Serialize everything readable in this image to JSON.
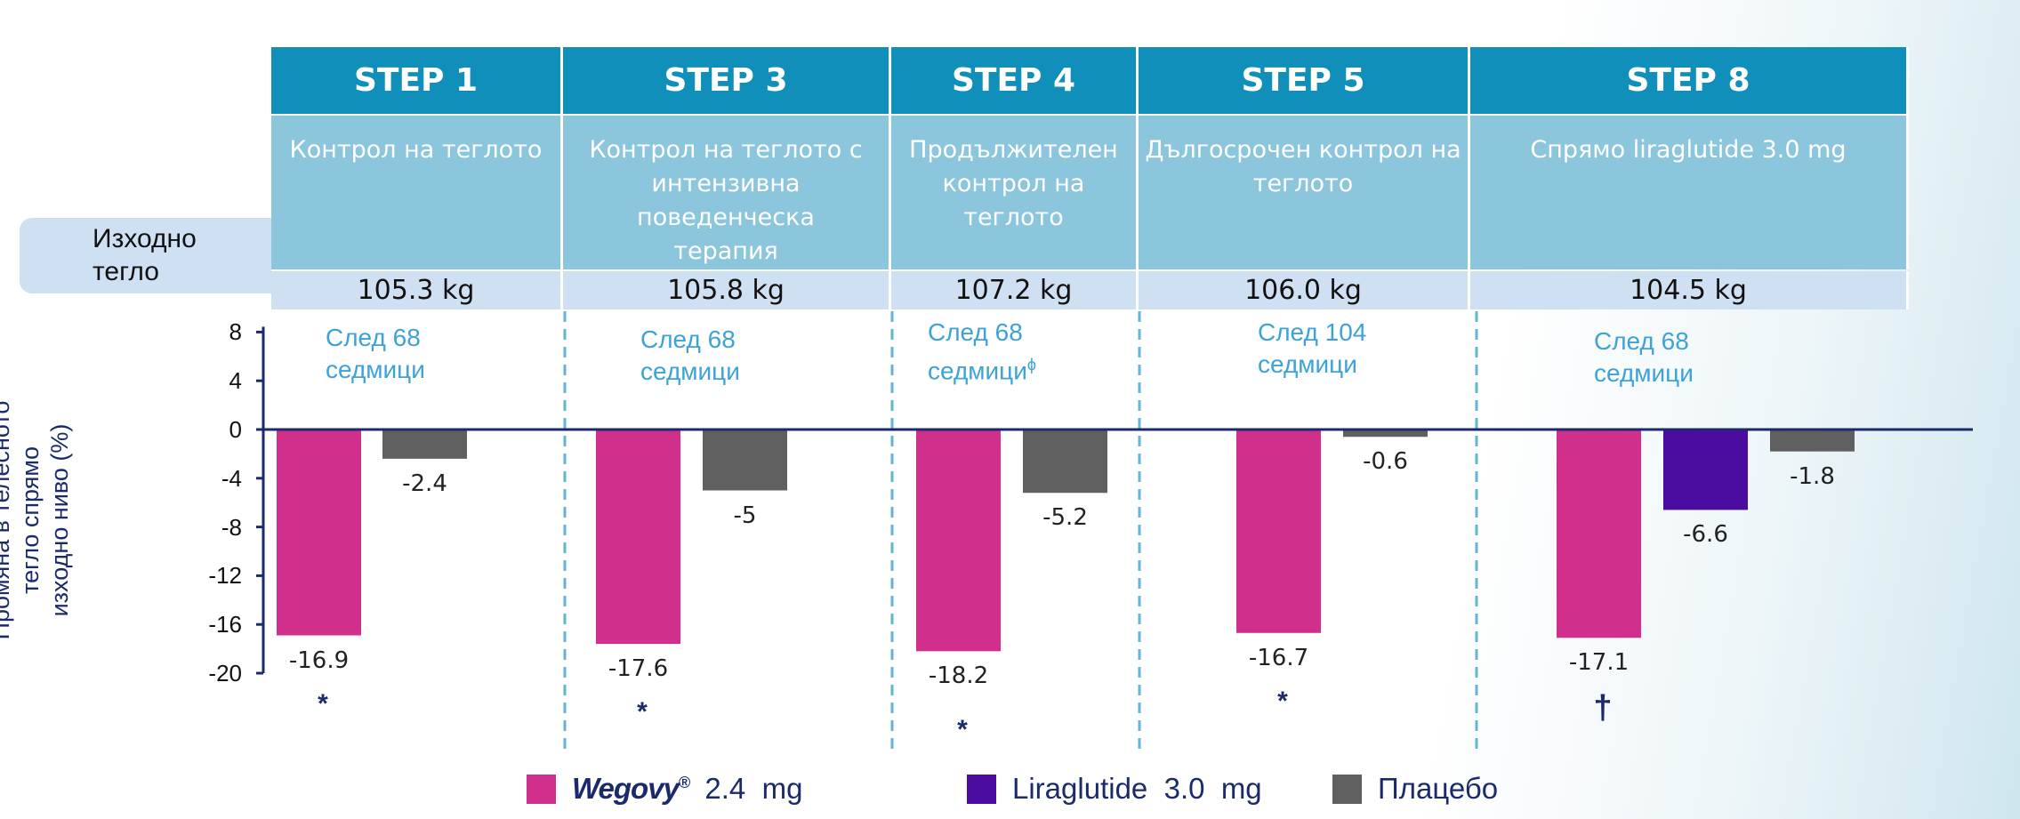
{
  "baseline_label": [
    "Изходно",
    "тегло"
  ],
  "y_axis_label": [
    "Промяна в телесното",
    "тегло спрямо",
    "изходно ниво (%)"
  ],
  "columns": [
    {
      "step": "STEP 1",
      "description": [
        "Контрол на теглото"
      ],
      "baseline_weight": "105.3 kg",
      "after": [
        "След 68",
        "седмици"
      ],
      "marker": "*"
    },
    {
      "step": "STEP 3",
      "description": [
        "Контрол на теглото с",
        "интензивна поведенческа",
        "терапия"
      ],
      "baseline_weight": "105.8 kg",
      "after": [
        "След 68",
        "седмици"
      ],
      "marker": "*"
    },
    {
      "step": "STEP 4",
      "description": [
        "Продължителен",
        "контрол на",
        "теглото"
      ],
      "baseline_weight": "107.2 kg",
      "after": [
        "След 68",
        "седмици"
      ],
      "after_sup": "ϕ",
      "marker": "*"
    },
    {
      "step": "STEP 5",
      "description": [
        "Дългосрочен контрол на",
        "теглото"
      ],
      "baseline_weight": "106.0 kg",
      "after": [
        "След 104",
        "седмици"
      ],
      "marker": "*"
    },
    {
      "step": "STEP 8",
      "description": [
        "Спрямо liraglutide 3.0 mg"
      ],
      "baseline_weight": "104.5 kg",
      "after": [
        "След 68",
        "седмици"
      ],
      "marker": "†"
    }
  ],
  "legend": [
    {
      "brand": "Wegovy",
      "sup": "®",
      "label": " 2.4  mg",
      "color": "#d0308b"
    },
    {
      "label": "Liraglutide  3.0  mg",
      "color": "#4a0d9f"
    },
    {
      "label": "Плацебо",
      "color": "#5f5f5f"
    }
  ],
  "chart_data": {
    "type": "bar",
    "categories": [
      "STEP 1",
      "STEP 3",
      "STEP 4",
      "STEP 5",
      "STEP 8"
    ],
    "series": [
      {
        "name": "Wegovy® 2.4 mg",
        "color": "#d0308b",
        "values": [
          -16.9,
          -17.6,
          -18.2,
          -16.7,
          -17.1
        ],
        "labels": [
          "-16.9",
          "-17.6",
          "-18.2",
          "-16.7",
          "-17.1"
        ]
      },
      {
        "name": "Liraglutide 3.0 mg",
        "color": "#4a0d9f",
        "values": [
          null,
          null,
          null,
          null,
          -6.6
        ],
        "labels": [
          null,
          null,
          null,
          null,
          "-6.6"
        ]
      },
      {
        "name": "Плацебо",
        "color": "#5f5f5f",
        "values": [
          -2.4,
          -5.0,
          -5.2,
          -0.6,
          -1.8
        ],
        "labels": [
          "-2.4",
          "-5",
          "-5.2",
          "-0.6",
          "-1.8"
        ]
      }
    ],
    "ylabel": "Промяна в телесното тегло спрямо изходно ниво (%)",
    "ylim": [
      -20,
      8
    ],
    "yticks": [
      8,
      4,
      0,
      -4,
      -8,
      -12,
      -16,
      -20
    ]
  }
}
